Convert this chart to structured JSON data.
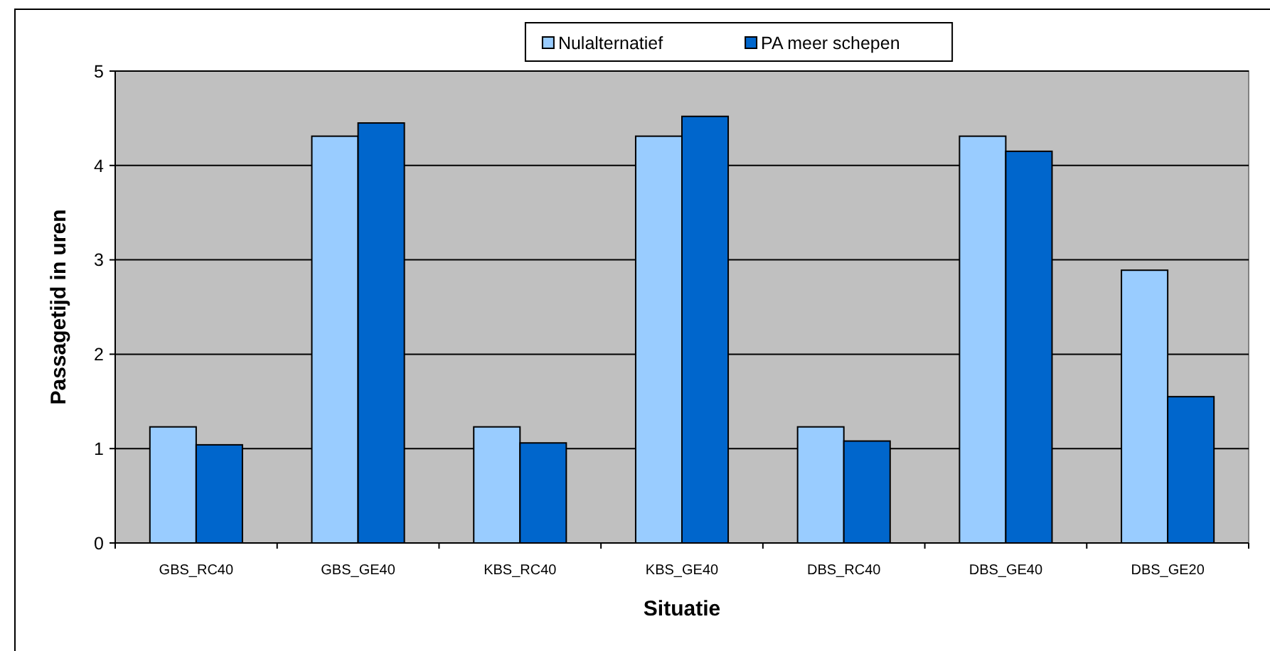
{
  "chart_data": {
    "type": "bar",
    "xlabel": "Situatie",
    "ylabel": "Passagetijd in uren",
    "categories": [
      "GBS_RC40",
      "GBS_GE40",
      "KBS_RC40",
      "KBS_GE40",
      "DBS_RC40",
      "DBS_GE40",
      "DBS_GE20"
    ],
    "series": [
      {
        "name": "Nulalternatief",
        "color": "#99ccff",
        "values": [
          1.23,
          4.31,
          1.23,
          4.31,
          1.23,
          4.31,
          2.89
        ]
      },
      {
        "name": "PA meer schepen",
        "color": "#0066cc",
        "values": [
          1.04,
          4.45,
          1.06,
          4.52,
          1.08,
          4.15,
          1.55
        ]
      }
    ],
    "ylim": [
      0,
      5
    ],
    "yticks": [
      0,
      1,
      2,
      3,
      4,
      5
    ],
    "grid": "y",
    "legend": "top"
  }
}
